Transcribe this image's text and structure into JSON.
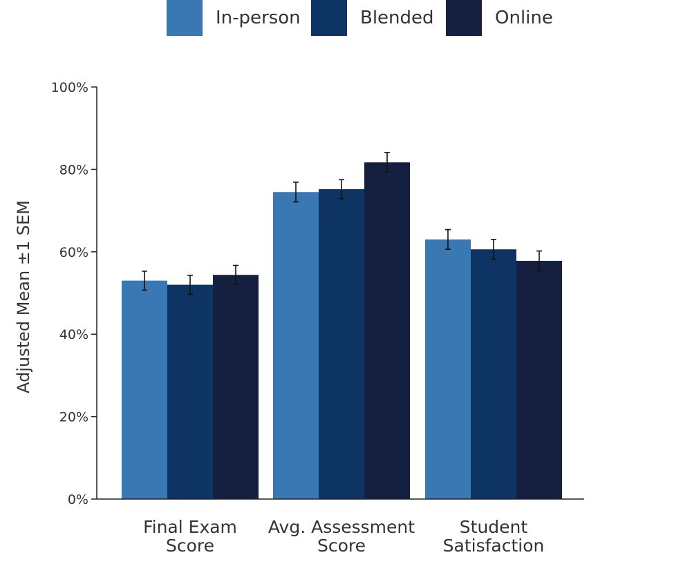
{
  "chart_data": {
    "type": "bar",
    "title": "",
    "xlabel": "",
    "ylabel": "Adjusted Mean ±1 SEM",
    "ylim": [
      0,
      100
    ],
    "yticks": [
      0,
      20,
      40,
      60,
      80,
      100
    ],
    "ytick_labels": [
      "0%",
      "20%",
      "40%",
      "60%",
      "80%",
      "100%"
    ],
    "categories": [
      [
        "Final Exam",
        "Score"
      ],
      [
        "Avg. Assessment",
        "Score"
      ],
      [
        "Student",
        "Satisfaction"
      ]
    ],
    "series": [
      {
        "name": "In-person",
        "color": "#3a78b4",
        "values": [
          53.0,
          74.5,
          63.0
        ],
        "sem": [
          2.3,
          2.4,
          2.4
        ]
      },
      {
        "name": "Blended",
        "color": "#0e3464",
        "values": [
          52.0,
          75.2,
          60.6
        ],
        "sem": [
          2.3,
          2.3,
          2.4
        ]
      },
      {
        "name": "Online",
        "color": "#152040",
        "values": [
          54.4,
          81.7,
          57.8
        ],
        "sem": [
          2.3,
          2.4,
          2.4
        ]
      }
    ],
    "legend_position": "top",
    "grid": false
  }
}
